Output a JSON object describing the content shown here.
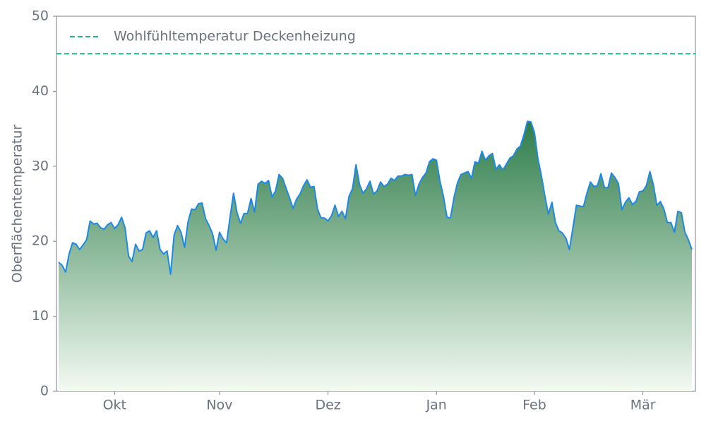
{
  "chart_data": {
    "type": "area",
    "y_label": "Oberflächentemperatur",
    "categories": [
      null,
      null,
      null,
      null,
      null,
      null,
      null,
      null,
      null,
      null,
      null,
      null,
      null,
      null,
      null,
      null,
      "Okt",
      null,
      null,
      null,
      null,
      null,
      null,
      null,
      null,
      null,
      null,
      null,
      null,
      null,
      null,
      null,
      null,
      null,
      null,
      null,
      null,
      null,
      null,
      null,
      null,
      null,
      null,
      null,
      null,
      null,
      "Nov",
      null,
      null,
      null,
      null,
      null,
      null,
      null,
      null,
      null,
      null,
      null,
      null,
      null,
      null,
      null,
      null,
      null,
      null,
      null,
      null,
      null,
      null,
      null,
      null,
      null,
      null,
      null,
      null,
      null,
      null,
      "Dez",
      null,
      null,
      null,
      null,
      null,
      null,
      null,
      null,
      null,
      null,
      null,
      null,
      null,
      null,
      null,
      null,
      null,
      null,
      null,
      null,
      null,
      null,
      null,
      null,
      null,
      null,
      null,
      null,
      null,
      null,
      "Jan",
      null,
      null,
      null,
      null,
      null,
      null,
      null,
      null,
      null,
      null,
      null,
      null,
      null,
      null,
      null,
      null,
      null,
      null,
      null,
      null,
      null,
      null,
      null,
      null,
      null,
      null,
      null,
      "Feb",
      null,
      null,
      null,
      null,
      null,
      null,
      null,
      null,
      null,
      null,
      null,
      null,
      null,
      null,
      null,
      null,
      null,
      null,
      null,
      null,
      null,
      null,
      null,
      null,
      null,
      null,
      null,
      null,
      null,
      null,
      "Mär",
      null,
      null,
      null,
      null,
      null,
      null,
      null,
      null,
      null,
      null,
      null,
      null,
      null,
      null
    ],
    "series": [
      {
        "color": "#1e88e5",
        "values": [
          17.2,
          16.8,
          15.9,
          18.3,
          19.8,
          19.6,
          18.9,
          19.5,
          20.2,
          22.7,
          22.3,
          22.4,
          21.8,
          21.6,
          22.2,
          22.5,
          21.7,
          22.2,
          23.2,
          21.8,
          18.0,
          17.3,
          19.6,
          18.7,
          18.9,
          21.1,
          21.4,
          20.5,
          21.4,
          18.9,
          18.3,
          18.7,
          15.6,
          20.8,
          22.1,
          21.2,
          19.2,
          22.6,
          24.3,
          24.2,
          25.0,
          25.1,
          23.0,
          22.1,
          21.0,
          18.8,
          21.2,
          20.3,
          19.8,
          23.2,
          26.4,
          23.8,
          22.4,
          23.7,
          23.7,
          25.7,
          23.9,
          27.6,
          28.0,
          27.7,
          28.1,
          25.9,
          26.7,
          28.9,
          28.4,
          27.1,
          25.8,
          24.4,
          25.6,
          26.3,
          27.4,
          28.2,
          27.2,
          27.3,
          24.3,
          23.1,
          23.1,
          22.7,
          23.4,
          24.8,
          23.3,
          24.0,
          23.0,
          26.0,
          27.0,
          30.2,
          27.6,
          26.4,
          27.0,
          28.0,
          26.3,
          26.7,
          27.9,
          27.3,
          27.6,
          28.4,
          28.1,
          28.7,
          28.7,
          28.9,
          28.8,
          28.9,
          26.1,
          27.6,
          28.5,
          29.1,
          30.6,
          31.0,
          30.8,
          28.0,
          26.0,
          23.2,
          23.1,
          25.8,
          27.8,
          28.9,
          29.1,
          29.3,
          28.4,
          30.6,
          30.4,
          32.0,
          30.8,
          31.4,
          31.7,
          29.6,
          30.2,
          29.5,
          30.3,
          31.1,
          31.4,
          32.3,
          32.7,
          34.2,
          36.0,
          35.9,
          34.5,
          31.0,
          28.7,
          26.0,
          23.6,
          25.2,
          22.5,
          21.4,
          21.1,
          20.4,
          18.9,
          21.8,
          24.8,
          24.7,
          24.6,
          26.4,
          27.9,
          27.3,
          27.4,
          29.0,
          27.2,
          27.1,
          29.1,
          28.5,
          27.7,
          24.2,
          25.2,
          25.8,
          24.9,
          25.3,
          26.6,
          26.7,
          27.4,
          29.3,
          27.5,
          24.8,
          25.3,
          24.3,
          22.5,
          22.5,
          21.2,
          24.0,
          23.8,
          21.2,
          20.2,
          18.9
        ]
      }
    ],
    "fill_colors": [
      "#2e7d4a",
      "#f3faf2"
    ],
    "reference_line": {
      "name": "Wohlfühltemperatur Deckenheizung",
      "value": 45,
      "color": "#20b486"
    },
    "ylim": [
      0,
      50
    ],
    "yticks": [
      0,
      10,
      20,
      30,
      40,
      50
    ],
    "legend": "upper left"
  }
}
